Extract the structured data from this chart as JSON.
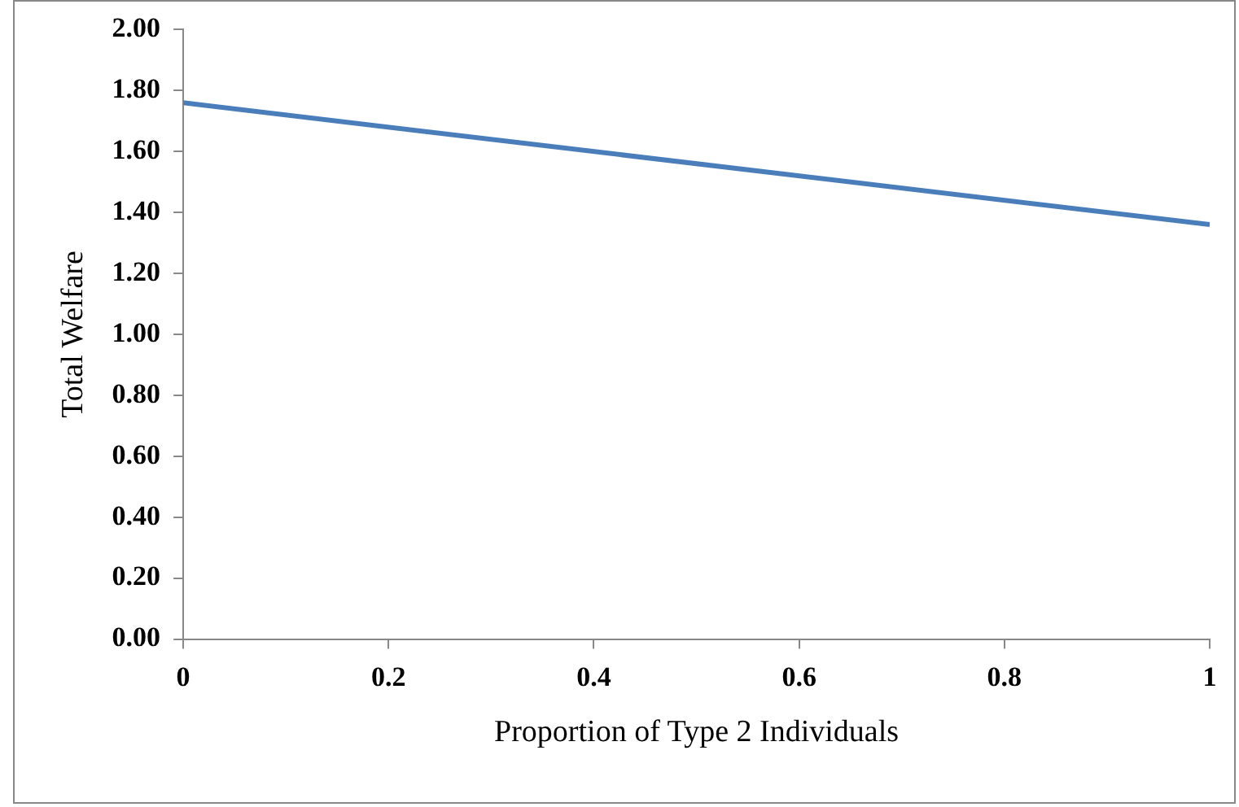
{
  "chart_data": {
    "type": "line",
    "xlabel": "Proportion of Type 2 Individuals",
    "ylabel": "Total Welfare",
    "x": [
      0,
      1
    ],
    "series": [
      {
        "color": "#4a7ebb",
        "values": [
          1.76,
          1.36
        ]
      }
    ],
    "xlim": [
      0,
      1
    ],
    "xticks": [
      0,
      0.2,
      0.4,
      0.6,
      0.8,
      1
    ],
    "ylim": [
      0,
      2
    ],
    "yticks": [
      {
        "value": 0,
        "label": "0.00"
      },
      {
        "value": 0.2,
        "label": "0.20"
      },
      {
        "value": 0.4,
        "label": "0.40"
      },
      {
        "value": 0.6,
        "label": "0.60"
      },
      {
        "value": 0.8,
        "label": "0.80"
      },
      {
        "value": 1,
        "label": "1.00"
      },
      {
        "value": 1.2,
        "label": "1.20"
      },
      {
        "value": 1.4,
        "label": "1.40"
      },
      {
        "value": 1.6,
        "label": "1.60"
      },
      {
        "value": 1.8,
        "label": "1.80"
      },
      {
        "value": 2,
        "label": "2.00"
      }
    ],
    "grid": false,
    "legend": false,
    "marker": "none",
    "line_style": "solid"
  }
}
